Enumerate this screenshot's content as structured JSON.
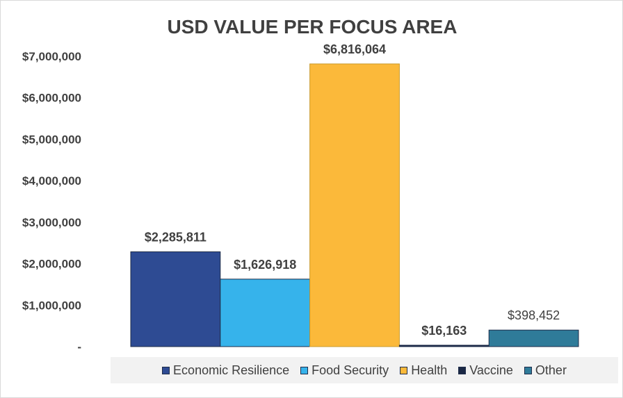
{
  "chart_data": {
    "type": "bar",
    "title": "USD VALUE PER FOCUS AREA",
    "categories": [
      "Economic Resilience",
      "Food Security",
      "Health",
      "Vaccine",
      "Other"
    ],
    "values": [
      2285811,
      1626918,
      6816064,
      16163,
      398452
    ],
    "data_labels": [
      "$2,285,811",
      "$1,626,918",
      "$6,816,064",
      "$16,163",
      "$398,452"
    ],
    "colors": [
      "#2e4b93",
      "#36b3eb",
      "#fbb93a",
      "#1a2845",
      "#2f7b99"
    ],
    "ylim": [
      0,
      7000000
    ],
    "yticks": [
      0,
      1000000,
      2000000,
      3000000,
      4000000,
      5000000,
      6000000,
      7000000
    ],
    "ytick_labels": [
      "-",
      "$1,000,000",
      "$2,000,000",
      "$3,000,000",
      "$4,000,000",
      "$5,000,000",
      "$6,000,000",
      "$7,000,000"
    ],
    "grid": false,
    "legend_position": "bottom",
    "xlabel": "",
    "ylabel": ""
  }
}
